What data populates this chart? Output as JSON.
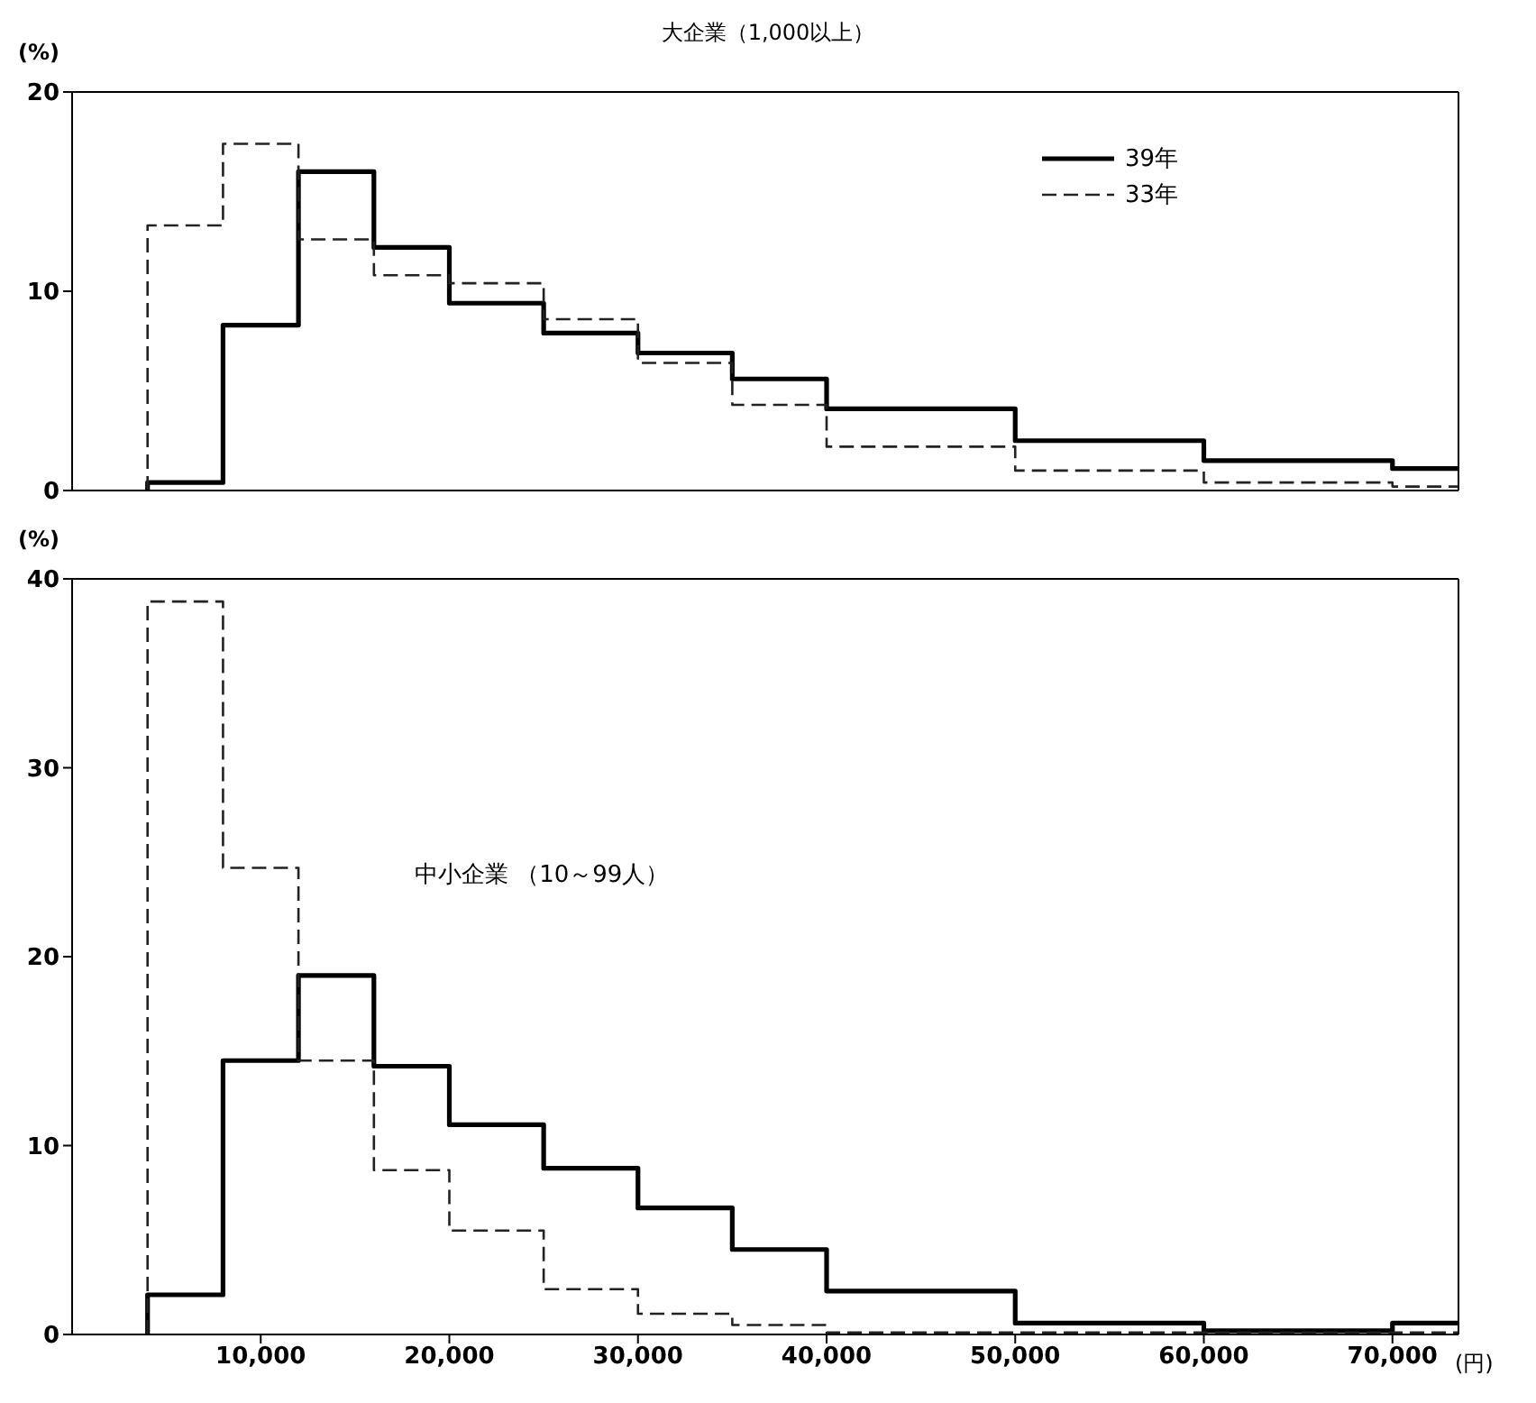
{
  "chart_data": [
    {
      "type": "histogram",
      "title": "大企業（1,000以上）",
      "ylabel": "(%)",
      "bins": [
        4000,
        8000,
        12000,
        16000,
        20000,
        25000,
        30000,
        35000,
        40000,
        50000,
        60000,
        70000,
        73500
      ],
      "series": [
        {
          "name": "39年",
          "color": "#000000",
          "line_style": "solid",
          "values": [
            0.4,
            8.3,
            16.0,
            12.2,
            9.4,
            7.9,
            6.9,
            5.6,
            4.1,
            2.5,
            1.5,
            1.1
          ]
        },
        {
          "name": "33年",
          "color": "#222222",
          "line_style": "dashed",
          "values": [
            13.3,
            17.4,
            12.6,
            10.8,
            10.4,
            8.6,
            6.4,
            4.3,
            2.2,
            1.0,
            0.4,
            0.2
          ]
        }
      ],
      "xlim": [
        0,
        73500
      ],
      "xticks": [
        {
          "value": 10000,
          "label": null
        },
        {
          "value": 20000,
          "label": null
        },
        {
          "value": 30000,
          "label": null
        },
        {
          "value": 40000,
          "label": null
        },
        {
          "value": 50000,
          "label": null
        },
        {
          "value": 60000,
          "label": null
        },
        {
          "value": 70000,
          "label": null
        }
      ],
      "ylim": [
        0,
        20
      ],
      "yticks": [
        0,
        10,
        20
      ],
      "tick_labels": "y",
      "legend": "top right",
      "grid": false
    },
    {
      "type": "histogram",
      "annotations": [
        "中小企業 （10～99人）"
      ],
      "ylabel": "(%)",
      "xlabel": "(円)",
      "bins": [
        4000,
        8000,
        12000,
        16000,
        20000,
        25000,
        30000,
        35000,
        40000,
        50000,
        60000,
        70000,
        73500
      ],
      "series": [
        {
          "color": "#000000",
          "line_style": "solid",
          "values": [
            2.1,
            14.5,
            19.0,
            14.2,
            11.1,
            8.8,
            6.7,
            4.5,
            2.3,
            0.6,
            0.2,
            0.6
          ]
        },
        {
          "color": "#222222",
          "line_style": "dashed",
          "values": [
            38.8,
            24.7,
            14.5,
            8.7,
            5.5,
            2.4,
            1.1,
            0.5,
            0.1,
            0.1,
            0.1,
            0.1
          ]
        }
      ],
      "xlim": [
        0,
        73500
      ],
      "xticks": [
        {
          "value": 10000,
          "label": "10,000"
        },
        {
          "value": 20000,
          "label": "20,000"
        },
        {
          "value": 30000,
          "label": "30,000"
        },
        {
          "value": 40000,
          "label": "40,000"
        },
        {
          "value": 50000,
          "label": "50,000"
        },
        {
          "value": 60000,
          "label": "60,000"
        },
        {
          "value": 70000,
          "label": "70,000"
        }
      ],
      "ylim": [
        0,
        40
      ],
      "yticks": [
        0,
        10,
        20,
        30,
        40
      ],
      "legend": false,
      "grid": false
    }
  ]
}
